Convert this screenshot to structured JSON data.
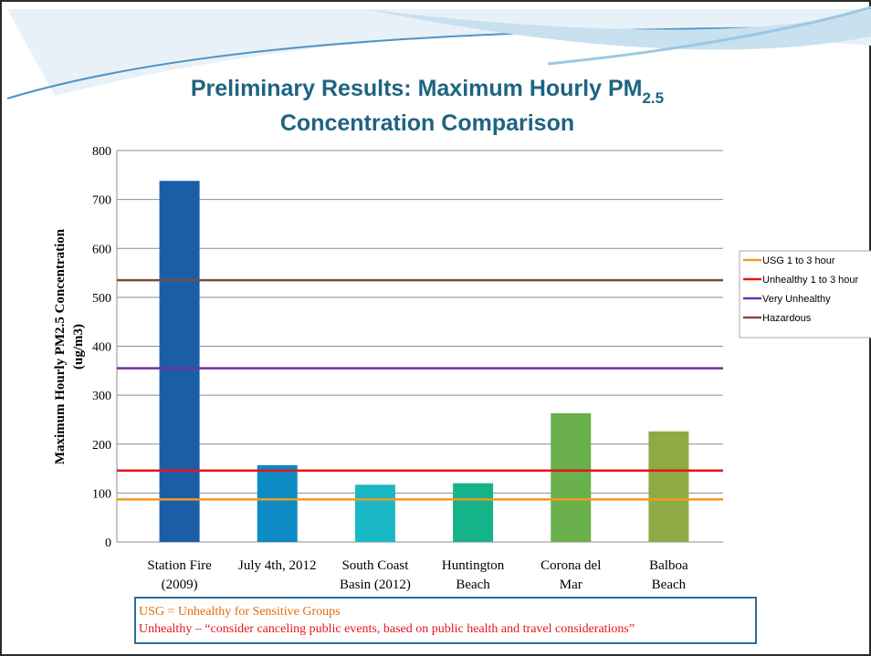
{
  "chart_data": {
    "type": "bar",
    "title_main": "Preliminary Results: Maximum Hourly PM",
    "title_sub": "2.5",
    "title_line2": "Concentration Comparison",
    "y_label": [
      "Maximum Hourly PM2.5 Concentration",
      "(ug/m3)"
    ],
    "categories": [
      [
        "Station Fire",
        "(2009)"
      ],
      [
        "July 4th, 2012"
      ],
      [
        "South Coast",
        "Basin (2012)"
      ],
      [
        "Huntington",
        "Beach"
      ],
      [
        "Corona del",
        "Mar"
      ],
      [
        "Balboa",
        "Beach"
      ]
    ],
    "values": [
      738,
      157,
      117,
      120,
      263,
      226
    ],
    "colors": [
      "#1b5ea8",
      "#0e8ac4",
      "#1ab8c4",
      "#15b389",
      "#6ab04c",
      "#8fa944"
    ],
    "reference_lines": [
      {
        "name": "USG 1 to 3 hour",
        "color": "#f29a1f",
        "value": 87
      },
      {
        "name": "Unhealthy 1 to 3 hour",
        "color": "#e8141c",
        "value": 146
      },
      {
        "name": "Very Unhealthy",
        "color": "#7030a0",
        "value": 355
      },
      {
        "name": "Hazardous",
        "color": "#7b4a3e",
        "value": 535
      }
    ],
    "ylim": [
      0,
      800
    ],
    "yticks": [
      0,
      100,
      200,
      300,
      400,
      500,
      600,
      700,
      800
    ],
    "grid": true,
    "legend": "right",
    "notes": [
      {
        "text": "USG = Unhealthy for Sensitive Groups",
        "color": "#e46c0a"
      },
      {
        "text": "Unhealthy – “consider canceling public events, based on public health and travel considerations”",
        "color": "#e8141c"
      }
    ]
  }
}
